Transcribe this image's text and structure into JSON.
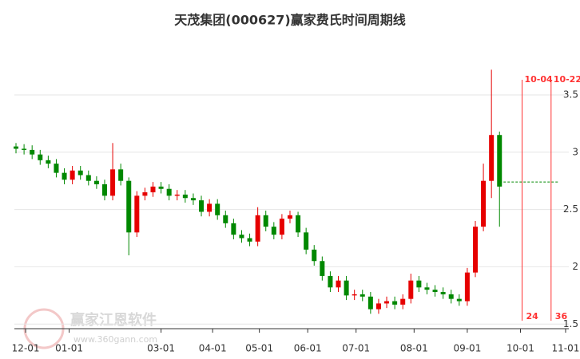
{
  "chart_data": {
    "type": "candlestick",
    "title": "天茂集团(000627)赢家费氏时间周期线",
    "watermark": [
      "赢家江恩软件",
      "www.360gann.com"
    ],
    "x": [
      -6,
      -1,
      4,
      9,
      14,
      19,
      24,
      29,
      34,
      39,
      44,
      49,
      54,
      59,
      64,
      69,
      74,
      79,
      84,
      89,
      94,
      99,
      104,
      109,
      114,
      119,
      124,
      129,
      134,
      139,
      144,
      149,
      154,
      159,
      164,
      169,
      174,
      179,
      184,
      189,
      194,
      199,
      204,
      209,
      214,
      219,
      224,
      229,
      234,
      239,
      244,
      249,
      254,
      259,
      264,
      269,
      274,
      279,
      284,
      289,
      294
    ],
    "open": [
      3.05,
      3.03,
      3.02,
      2.98,
      2.93,
      2.9,
      2.82,
      2.76,
      2.84,
      2.8,
      2.75,
      2.72,
      2.62,
      2.85,
      2.75,
      2.3,
      2.62,
      2.65,
      2.7,
      2.68,
      2.62,
      2.63,
      2.6,
      2.58,
      2.48,
      2.55,
      2.45,
      2.38,
      2.28,
      2.25,
      2.22,
      2.45,
      2.35,
      2.28,
      2.42,
      2.45,
      2.3,
      2.15,
      2.05,
      1.92,
      1.82,
      1.88,
      1.75,
      1.76,
      1.74,
      1.63,
      1.68,
      1.7,
      1.67,
      1.72,
      1.88,
      1.82,
      1.8,
      1.78,
      1.76,
      1.72,
      1.7,
      1.95,
      2.35,
      2.75,
      3.15
    ],
    "high": [
      3.08,
      3.07,
      3.06,
      3.02,
      2.97,
      2.94,
      2.86,
      2.88,
      2.88,
      2.84,
      2.79,
      2.76,
      3.08,
      2.9,
      2.78,
      2.66,
      2.69,
      2.74,
      2.74,
      2.72,
      2.67,
      2.67,
      2.64,
      2.62,
      2.59,
      2.59,
      2.49,
      2.42,
      2.32,
      2.29,
      2.52,
      2.49,
      2.39,
      2.46,
      2.49,
      2.48,
      2.34,
      2.19,
      2.09,
      1.96,
      1.92,
      1.92,
      1.8,
      1.8,
      1.78,
      1.72,
      1.74,
      1.74,
      1.76,
      1.94,
      1.92,
      1.86,
      1.84,
      1.82,
      1.8,
      1.76,
      1.99,
      2.4,
      2.9,
      3.72,
      3.18
    ],
    "low": [
      2.99,
      2.98,
      2.94,
      2.89,
      2.86,
      2.78,
      2.72,
      2.72,
      2.76,
      2.71,
      2.68,
      2.58,
      2.58,
      2.71,
      2.1,
      2.26,
      2.58,
      2.61,
      2.64,
      2.58,
      2.58,
      2.56,
      2.54,
      2.44,
      2.44,
      2.41,
      2.34,
      2.24,
      2.21,
      2.18,
      2.18,
      2.31,
      2.24,
      2.24,
      2.38,
      2.26,
      2.11,
      2.01,
      1.88,
      1.78,
      1.78,
      1.71,
      1.71,
      1.7,
      1.59,
      1.59,
      1.64,
      1.63,
      1.63,
      1.68,
      1.78,
      1.76,
      1.74,
      1.72,
      1.68,
      1.66,
      1.66,
      1.91,
      2.31,
      2.6,
      2.35
    ],
    "close": [
      3.03,
      3.02,
      2.98,
      2.93,
      2.9,
      2.82,
      2.76,
      2.84,
      2.8,
      2.75,
      2.72,
      2.62,
      2.85,
      2.75,
      2.3,
      2.62,
      2.65,
      2.7,
      2.68,
      2.62,
      2.63,
      2.6,
      2.58,
      2.48,
      2.55,
      2.45,
      2.38,
      2.28,
      2.25,
      2.22,
      2.45,
      2.35,
      2.28,
      2.42,
      2.45,
      2.3,
      2.15,
      2.05,
      1.92,
      1.82,
      1.88,
      1.75,
      1.76,
      1.74,
      1.63,
      1.68,
      1.7,
      1.67,
      1.72,
      1.88,
      1.82,
      1.8,
      1.78,
      1.76,
      1.72,
      1.7,
      1.95,
      2.35,
      2.75,
      3.15,
      2.7
    ],
    "up_color": "#e60000",
    "down_color": "#008800",
    "reference_line": {
      "value": 2.74,
      "color": "#008800"
    },
    "cycle_lines": [
      {
        "x": 308,
        "label": "10-04",
        "count": 24
      },
      {
        "x": 326,
        "label": "10-22",
        "count": 36
      }
    ],
    "cycle_color": "#ff3333",
    "xlim": [
      -7,
      337
    ],
    "xticks": [
      {
        "value": 0,
        "label": "12-01"
      },
      {
        "value": 27,
        "label": "01-01"
      },
      {
        "value": 84,
        "label": "03-01"
      },
      {
        "value": 116,
        "label": "04-01"
      },
      {
        "value": 145,
        "label": "05-01"
      },
      {
        "value": 175,
        "label": "06-01"
      },
      {
        "value": 205,
        "label": "07-01"
      },
      {
        "value": 241,
        "label": "08-01"
      },
      {
        "value": 274,
        "label": "09-01"
      },
      {
        "value": 307,
        "label": "10-01"
      },
      {
        "value": 335,
        "label": "11-01"
      }
    ],
    "ylim": [
      1.46,
      3.98
    ],
    "yticks": [
      1.5,
      2,
      2.5,
      3,
      3.5
    ],
    "grid": true
  }
}
